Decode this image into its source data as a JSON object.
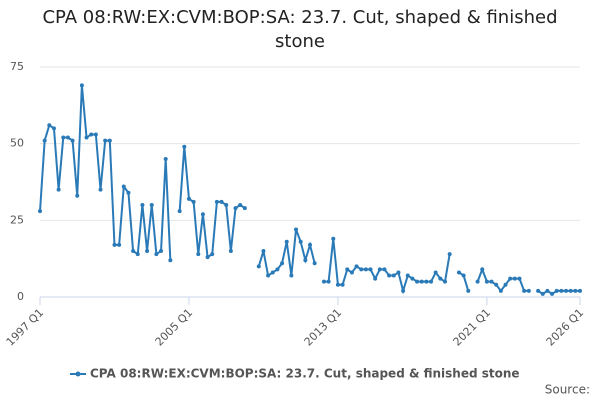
{
  "chart_data": {
    "type": "line",
    "title": "CPA 08:RW:EX:CVM:BOP:SA: 23.7. Cut, shaped & finished stone",
    "source": "Source:",
    "categories": [
      "1997 Q1",
      null,
      null,
      null,
      null,
      null,
      null,
      null,
      null,
      null,
      null,
      null,
      null,
      null,
      null,
      null,
      null,
      null,
      null,
      null,
      null,
      null,
      null,
      null,
      null,
      null,
      null,
      null,
      null,
      null,
      null,
      null,
      "2005 Q1",
      null,
      null,
      null,
      null,
      null,
      null,
      null,
      null,
      null,
      null,
      null,
      null,
      null,
      null,
      null,
      null,
      null,
      null,
      null,
      null,
      null,
      null,
      null,
      null,
      null,
      null,
      null,
      null,
      null,
      null,
      null,
      "2013 Q1",
      null,
      null,
      null,
      null,
      null,
      null,
      null,
      null,
      null,
      null,
      null,
      null,
      null,
      null,
      null,
      null,
      null,
      null,
      null,
      null,
      null,
      null,
      null,
      null,
      null,
      null,
      null,
      null,
      null,
      null,
      null,
      "2021 Q1",
      null,
      null,
      null,
      null,
      null,
      null,
      null,
      null,
      null,
      null,
      null,
      null,
      null,
      null,
      null,
      null,
      null,
      null,
      null,
      "2026 Q1"
    ],
    "series": [
      {
        "name": "CPA 08:RW:EX:CVM:BOP:SA: 23.7. Cut, shaped & finished stone",
        "color": "#2a7ab8",
        "values": [
          28,
          51,
          56,
          55,
          35,
          52,
          52,
          51,
          33,
          69,
          52,
          53,
          53,
          35,
          51,
          51,
          17,
          17,
          36,
          34,
          15,
          14,
          30,
          15,
          30,
          14,
          15,
          45,
          12,
          null,
          28,
          49,
          32,
          31,
          14,
          27,
          13,
          14,
          31,
          31,
          30,
          15,
          29,
          30,
          29,
          null,
          null,
          10,
          15,
          7,
          8,
          9,
          11,
          18,
          7,
          22,
          18,
          12,
          17,
          11,
          null,
          5,
          5,
          19,
          4,
          4,
          9,
          8,
          10,
          9,
          9,
          9,
          6,
          9,
          9,
          7,
          7,
          8,
          2,
          7,
          6,
          5,
          5,
          5,
          5,
          8,
          6,
          5,
          14,
          null,
          8,
          7,
          2,
          null,
          5,
          9,
          5,
          5,
          4,
          2,
          4,
          6,
          6,
          6,
          2,
          2,
          null,
          2,
          1,
          2,
          1,
          2,
          2,
          2,
          2,
          2,
          2
        ]
      }
    ],
    "ylim": [
      0,
      75
    ],
    "yticks": [
      0,
      25,
      50,
      75
    ],
    "grid": true
  }
}
